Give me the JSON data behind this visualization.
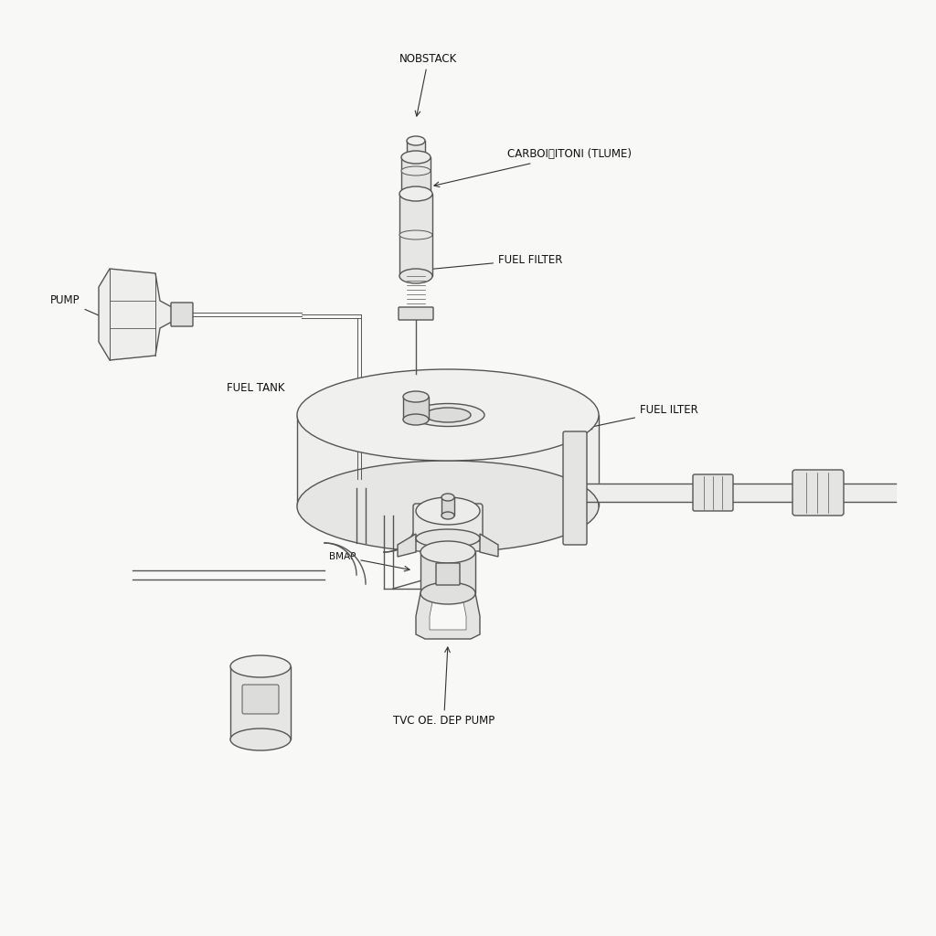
{
  "background_color": "#f8f8f6",
  "line_color": "#555555",
  "fill_color": "#f0f0ee",
  "fill_dark": "#e0e0de",
  "font_size": 8.5,
  "line_width": 1.0,
  "labels": {
    "nobstack": "NOBSTACK",
    "carboni": "CARBOI之ITONI (TLUME)",
    "fuel_filter": "FUEL FILTER",
    "fuel_ilter": "FUEL ILTER",
    "fuel_tank": "FUEL TANK",
    "pump": "PUMP",
    "bmap": "BMAP",
    "tvc": "TVC OE. DEP PUMP"
  }
}
